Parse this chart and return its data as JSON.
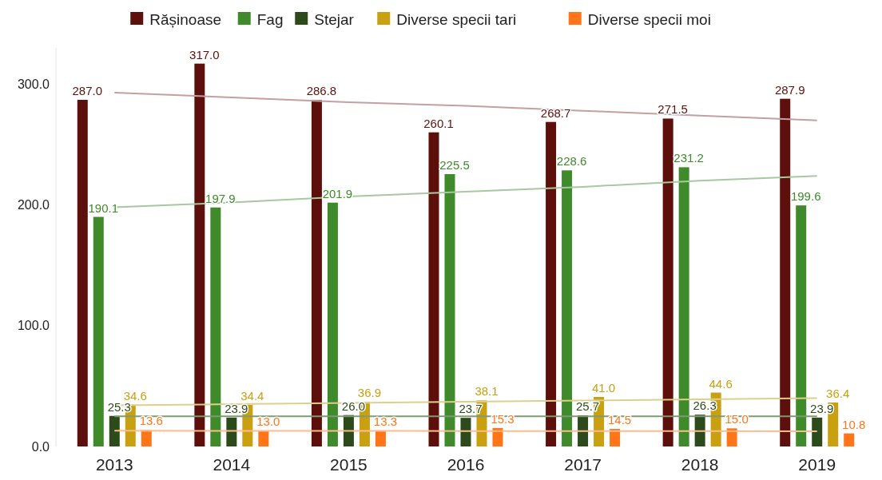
{
  "chart_data": {
    "type": "bar",
    "categories": [
      "2013",
      "2014",
      "2015",
      "2016",
      "2017",
      "2018",
      "2019"
    ],
    "series": [
      {
        "name": "Rășinoase",
        "color": "#5c0f0b",
        "values": [
          287.0,
          317.0,
          286.8,
          260.1,
          268.7,
          271.5,
          287.9
        ],
        "value_labels": [
          "287.0",
          "317.0",
          "286.8",
          "260.1",
          "268.7",
          "271.5",
          "287.9"
        ]
      },
      {
        "name": "Fag",
        "color": "#3f8a2a",
        "values": [
          190.1,
          197.9,
          201.9,
          225.5,
          228.6,
          231.2,
          199.6
        ],
        "value_labels": [
          "190.1",
          "197.9",
          "201.9",
          "225.5",
          "228.6",
          "231.2",
          "199.6"
        ]
      },
      {
        "name": "Stejar",
        "color": "#2d4a1a",
        "values": [
          25.3,
          23.9,
          26.0,
          23.7,
          25.7,
          26.3,
          23.9
        ],
        "value_labels": [
          "25.3",
          "23.9",
          "26.0",
          "23.7",
          "25.7",
          "26.3",
          "23.9"
        ]
      },
      {
        "name": "Diverse specii tari",
        "color": "#c9a010",
        "values": [
          34.6,
          34.4,
          36.9,
          38.1,
          41.0,
          44.6,
          36.4
        ],
        "value_labels": [
          "34.6",
          "34.4",
          "36.9",
          "38.1",
          "41.0",
          "44.6",
          "36.4"
        ]
      },
      {
        "name": "Diverse specii moi",
        "color": "#ff7518",
        "values": [
          13.6,
          13.0,
          13.3,
          15.3,
          14.5,
          15.0,
          10.8
        ],
        "value_labels": [
          "13.6",
          "13.0",
          "13.3",
          "15.3",
          "14.5",
          "15.0",
          "10.8"
        ]
      },
      {
        "type": "line",
        "color": "#c4a0a0",
        "values": [
          293,
          289,
          285,
          282,
          278,
          274,
          270
        ]
      },
      {
        "type": "line",
        "color": "#a8c8a0",
        "values": [
          198,
          202,
          207,
          211,
          215,
          220,
          224
        ]
      },
      {
        "type": "line",
        "color": "#7f9a72",
        "values": [
          25,
          25,
          25,
          25,
          25,
          25,
          25
        ]
      },
      {
        "type": "line",
        "color": "#ddd08c",
        "values": [
          34,
          35,
          36,
          37,
          38,
          39,
          40
        ]
      },
      {
        "type": "line",
        "color": "#fbbc90",
        "values": [
          13,
          12.9,
          12.9,
          12.8,
          12.7,
          12.7,
          12.6
        ]
      }
    ],
    "ylim": [
      0,
      330
    ],
    "yticks": [
      {
        "value": 0,
        "label": "0.0"
      },
      {
        "value": 100,
        "label": "100.0"
      },
      {
        "value": 200,
        "label": "200.0"
      },
      {
        "value": 300,
        "label": "300.0"
      }
    ],
    "legend": "top",
    "grid": false
  }
}
